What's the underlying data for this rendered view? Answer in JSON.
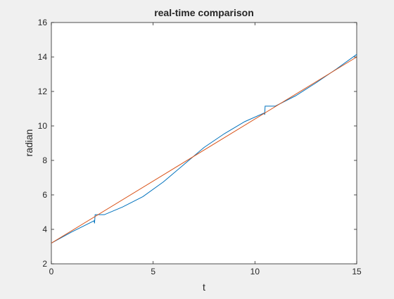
{
  "chart_data": {
    "type": "line",
    "title": "real-time comparison",
    "xlabel": "t",
    "ylabel": "radian",
    "xlim": [
      0,
      15
    ],
    "ylim": [
      2,
      16
    ],
    "xticks": [
      0,
      5,
      10,
      15
    ],
    "xtick_labels": [
      "0",
      "5",
      "10",
      "15"
    ],
    "yticks": [
      2,
      4,
      6,
      8,
      10,
      12,
      14,
      16
    ],
    "ytick_labels": [
      "2",
      "4",
      "6",
      "8",
      "10",
      "12",
      "14",
      "16"
    ],
    "grid": false,
    "legend": false,
    "series": [
      {
        "color": "#0072BD",
        "x": [
          0,
          1,
          2.1,
          2.12,
          2.15,
          2.6,
          3.5,
          4.5,
          5.5,
          6.5,
          7.5,
          8.5,
          9.5,
          10.45,
          10.48,
          10.5,
          11.0,
          12,
          13,
          14,
          15
        ],
        "y": [
          3.2,
          3.85,
          4.5,
          4.35,
          4.85,
          4.85,
          5.3,
          5.9,
          6.75,
          7.75,
          8.75,
          9.55,
          10.25,
          10.75,
          10.65,
          11.15,
          11.15,
          11.75,
          12.5,
          13.3,
          14.15
        ]
      },
      {
        "color": "#D95319",
        "x": [
          0,
          15
        ],
        "y": [
          3.2,
          14.0
        ]
      }
    ]
  }
}
